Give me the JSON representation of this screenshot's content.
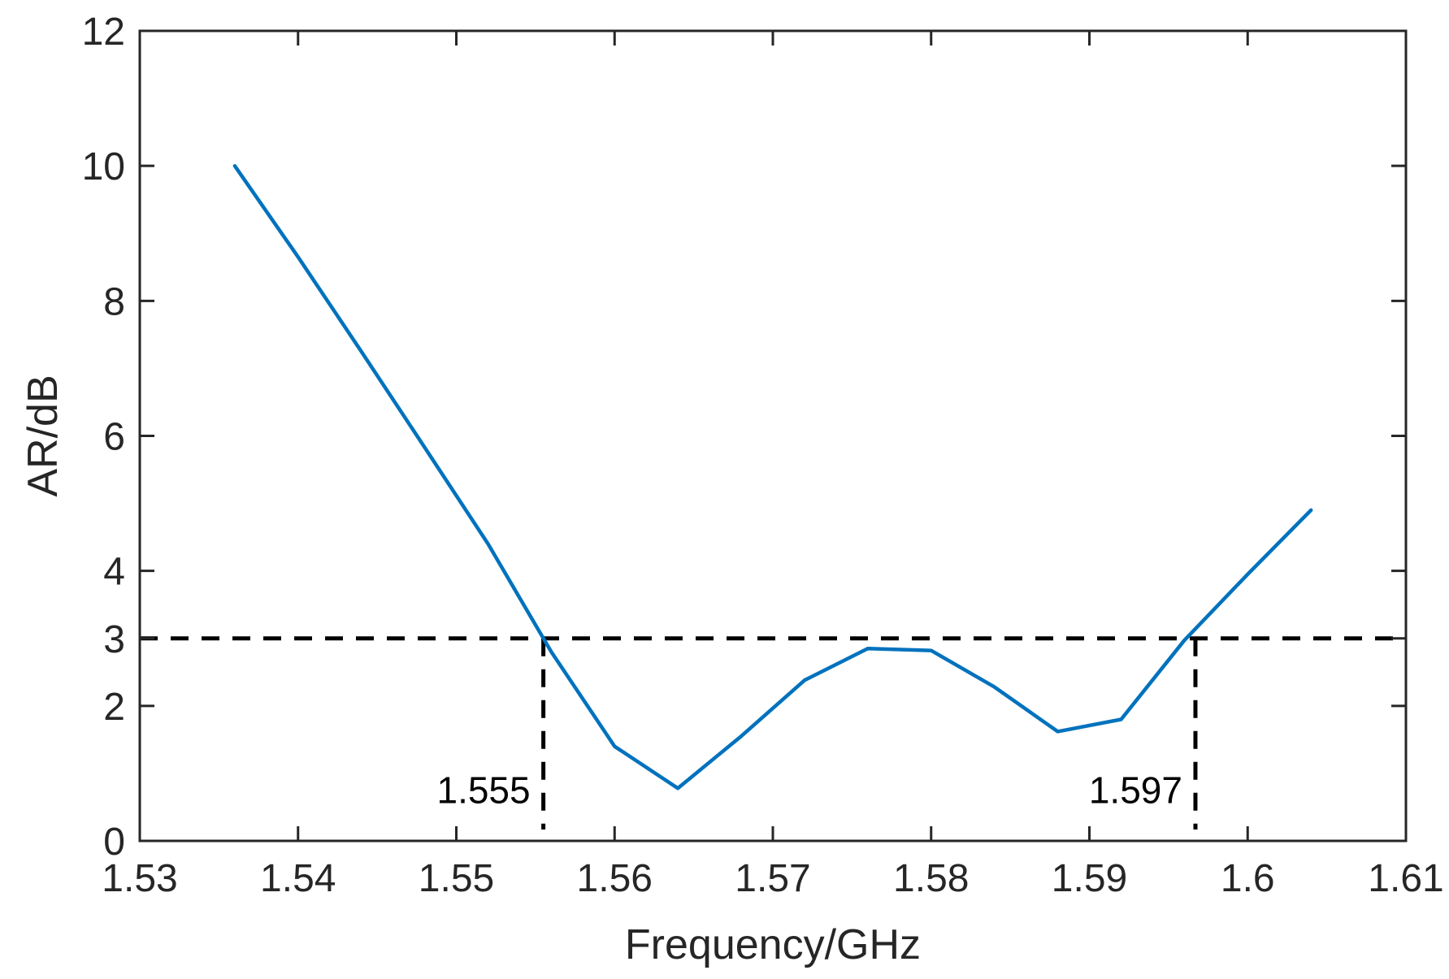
{
  "chart_data": {
    "type": "line",
    "title": "",
    "xlabel": "Frequency/GHz",
    "ylabel": "AR/dB",
    "xlim": [
      1.53,
      1.61
    ],
    "ylim": [
      0,
      12
    ],
    "grid": false,
    "x_ticks": [
      1.53,
      1.54,
      1.55,
      1.56,
      1.57,
      1.58,
      1.59,
      1.6,
      1.61
    ],
    "x_tick_labels": [
      "1.53",
      "1.54",
      "1.55",
      "1.56",
      "1.57",
      "1.58",
      "1.59",
      "1.6",
      "1.61"
    ],
    "y_ticks": [
      0,
      2,
      3,
      4,
      6,
      8,
      10,
      12
    ],
    "y_tick_labels": [
      "0",
      "2",
      "3",
      "4",
      "6",
      "8",
      "10",
      "12"
    ],
    "series": [
      {
        "color": "#0072bd",
        "x": [
          1.536,
          1.54,
          1.544,
          1.548,
          1.552,
          1.556,
          1.56,
          1.564,
          1.568,
          1.572,
          1.576,
          1.58,
          1.584,
          1.588,
          1.592,
          1.596,
          1.6,
          1.604
        ],
        "y": [
          10.0,
          8.65,
          7.25,
          5.83,
          4.4,
          2.8,
          1.4,
          0.78,
          1.55,
          2.38,
          2.85,
          2.82,
          2.28,
          1.62,
          1.8,
          2.97,
          3.95,
          4.9
        ]
      }
    ],
    "reference_lines": [
      {
        "orientation": "horizontal",
        "value": 3,
        "style": "dashed",
        "color": "#000000"
      },
      {
        "orientation": "vertical",
        "value": 1.5555,
        "style": "dashed",
        "color": "#000000"
      },
      {
        "orientation": "vertical",
        "value": 1.5967,
        "style": "dashed",
        "color": "#000000"
      }
    ],
    "annotations": [
      {
        "text": "1.555",
        "x": 1.5555,
        "y": 0.75
      },
      {
        "text": "1.597",
        "x": 1.5967,
        "y": 0.75
      }
    ]
  }
}
